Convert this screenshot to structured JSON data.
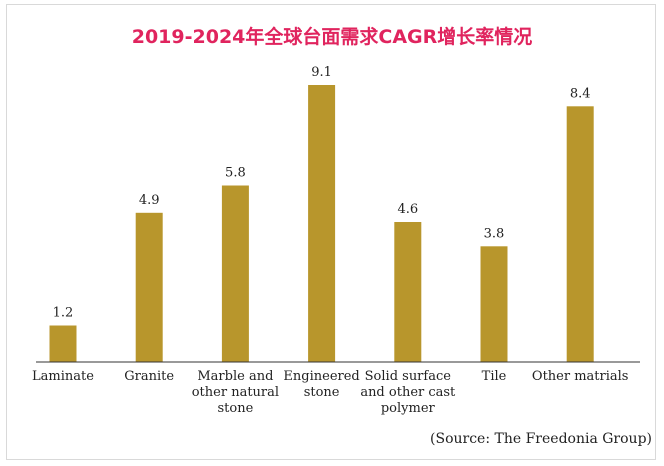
{
  "chart_data": {
    "type": "bar",
    "title": "2019-2024年全球台面需求CAGR增长率情况",
    "categories": [
      "Laminate",
      "Granite",
      "Marble and other natural stone",
      "Engineered stone",
      "Solid surface and other cast polymer",
      "Tile",
      "Other matrials"
    ],
    "category_lines": [
      [
        "Laminate"
      ],
      [
        "Granite"
      ],
      [
        "Marble and",
        "other natural",
        "stone"
      ],
      [
        "Engineered",
        "stone"
      ],
      [
        "Solid surface",
        "and other cast",
        "polymer"
      ],
      [
        "Tile"
      ],
      [
        "Other matrials"
      ]
    ],
    "values": [
      1.2,
      4.9,
      5.8,
      9.1,
      4.6,
      3.8,
      8.4
    ],
    "value_labels": [
      "1.2",
      "4.9",
      "5.8",
      "9.1",
      "4.6",
      "3.8",
      "8.4"
    ],
    "xlabel": "",
    "ylabel": "",
    "ylim": [
      0,
      10
    ],
    "grid": false,
    "bar_color": "#b8962c",
    "axis_color": "#333333",
    "source": "(Source: The Freedonia Group)"
  },
  "colors": {
    "title": "#e0245e"
  }
}
